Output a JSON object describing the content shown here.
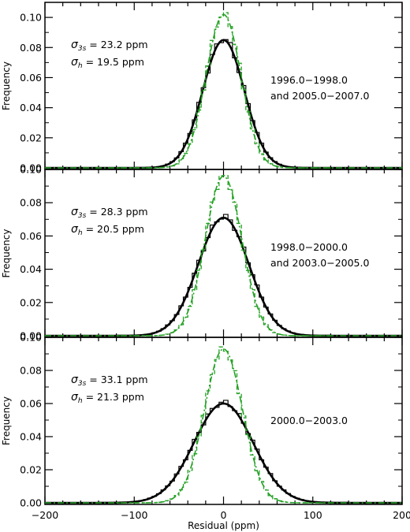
{
  "chart_data": [
    {
      "type": "histogram",
      "ylabel": "Frequency",
      "xlim": [
        -200,
        200
      ],
      "ylim": [
        0,
        0.11
      ],
      "yticks": [
        "0.00",
        "0.02",
        "0.04",
        "0.06",
        "0.08",
        "0.10"
      ],
      "annotation_sigma_3s": "23.2 ppm",
      "annotation_sigma_h": "19.5 ppm",
      "period_lines": [
        "1996.0−1998.0",
        "and 2005.0−2007.0"
      ],
      "series": [
        {
          "color": "#000000",
          "style": "histogram+gaussian",
          "sigma": 23.2,
          "peak": 0.085
        },
        {
          "color": "#22a022",
          "style": "dashed",
          "sigma": 19.5,
          "peak": 0.102
        }
      ]
    },
    {
      "type": "histogram",
      "ylabel": "Frequency",
      "xlim": [
        -200,
        200
      ],
      "ylim": [
        0,
        0.1
      ],
      "yticks": [
        "0.00",
        "0.02",
        "0.04",
        "0.06",
        "0.08",
        "0.10"
      ],
      "annotation_sigma_3s": "28.3 ppm",
      "annotation_sigma_h": "20.5 ppm",
      "period_lines": [
        "1998.0−2000.0",
        "and 2003.0−2005.0"
      ],
      "series": [
        {
          "color": "#000000",
          "style": "histogram+gaussian",
          "sigma": 28.3,
          "peak": 0.071
        },
        {
          "color": "#22a022",
          "style": "dashed",
          "sigma": 20.5,
          "peak": 0.096
        }
      ]
    },
    {
      "type": "histogram",
      "ylabel": "Frequency",
      "xlabel": "Residual (ppm)",
      "xlim": [
        -200,
        200
      ],
      "ylim": [
        0,
        0.1
      ],
      "yticks": [
        "0.00",
        "0.02",
        "0.04",
        "0.06",
        "0.08",
        "0.10"
      ],
      "xticks": [
        "−200",
        "−100",
        "0",
        "100",
        "200"
      ],
      "annotation_sigma_3s": "33.1 ppm",
      "annotation_sigma_h": "21.3 ppm",
      "period_lines": [
        "2000.0−2003.0"
      ],
      "series": [
        {
          "color": "#000000",
          "style": "histogram+gaussian",
          "sigma": 33.1,
          "peak": 0.06
        },
        {
          "color": "#22a022",
          "style": "dashed",
          "sigma": 21.3,
          "peak": 0.093
        }
      ]
    }
  ]
}
